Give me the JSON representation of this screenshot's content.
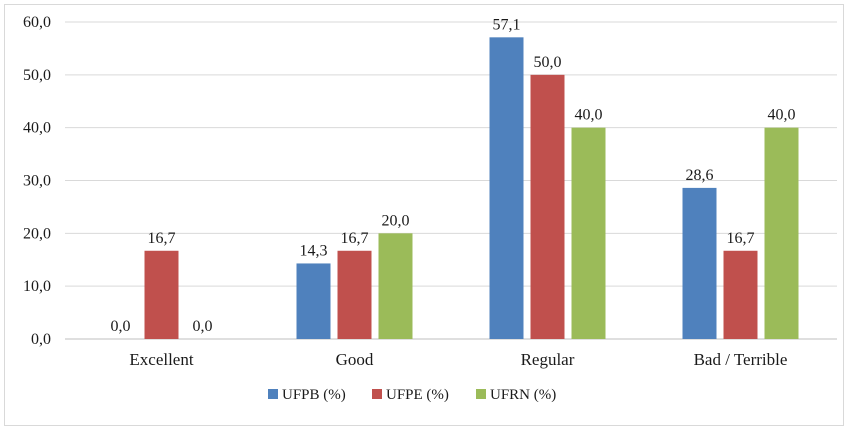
{
  "chart_data": {
    "type": "bar",
    "categories": [
      "Excellent",
      "Good",
      "Regular",
      "Bad / Terrible"
    ],
    "series": [
      {
        "name": "UFPB (%)",
        "values": [
          0.0,
          14.3,
          57.1,
          28.6
        ],
        "labels": [
          "0,0",
          "14,3",
          "57,1",
          "28,6"
        ],
        "color": "#4f81bd"
      },
      {
        "name": "UFPE (%)",
        "values": [
          16.7,
          16.7,
          50.0,
          16.7
        ],
        "labels": [
          "16,7",
          "16,7",
          "50,0",
          "16,7"
        ],
        "color": "#c0504d"
      },
      {
        "name": "UFRN (%)",
        "values": [
          0.0,
          20.0,
          40.0,
          40.0
        ],
        "labels": [
          "0,0",
          "20,0",
          "40,0",
          "40,0"
        ],
        "color": "#9bbb59"
      }
    ],
    "ylim": [
      0,
      60
    ],
    "yticks": [
      0,
      10,
      20,
      30,
      40,
      50,
      60
    ],
    "ytick_labels": [
      "0,0",
      "10,0",
      "20,0",
      "30,0",
      "40,0",
      "50,0",
      "60,0"
    ],
    "grid": true,
    "legend": "bottom",
    "title": "",
    "xlabel": "",
    "ylabel": ""
  }
}
